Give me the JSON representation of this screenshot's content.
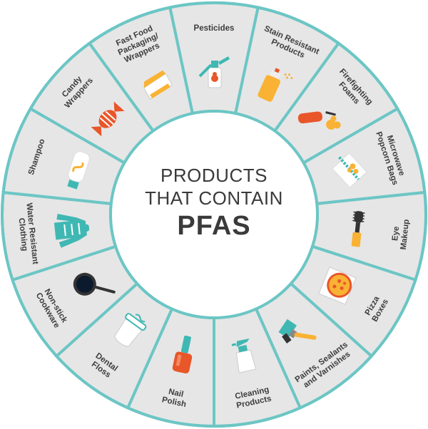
{
  "center": {
    "line1": "PRODUCTS",
    "line2": "THAT CONTAIN",
    "line3": "PFAS"
  },
  "colors": {
    "ring_border": "#6cc6c5",
    "segment_fill": "#e6e6e6",
    "center_fill": "#ffffff",
    "orange": "#e8562a",
    "yellow": "#f9b233",
    "teal": "#3fb8b3",
    "dark": "#333333"
  },
  "segments": [
    {
      "id": "pesticides",
      "lines": [
        "Pesticides"
      ],
      "icon": "pesticide-spray-icon"
    },
    {
      "id": "stain-resistant-products",
      "lines": [
        "Stain Resistant",
        "Products"
      ],
      "icon": "spray-can-icon"
    },
    {
      "id": "firefighting-foams",
      "lines": [
        "Firefighting",
        "Foams"
      ],
      "icon": "fire-extinguisher-icon"
    },
    {
      "id": "microwave-popcorn-bags",
      "lines": [
        "Microwave",
        "Popcorn Bags"
      ],
      "icon": "popcorn-bag-icon"
    },
    {
      "id": "eye-makeup",
      "lines": [
        "Eye",
        "Makeup"
      ],
      "icon": "mascara-icon"
    },
    {
      "id": "pizza-boxes",
      "lines": [
        "Pizza",
        "Boxes"
      ],
      "icon": "pizza-box-icon"
    },
    {
      "id": "paints-sealants-varnishes",
      "lines": [
        "Paints, Sealants",
        "and Varnishes"
      ],
      "icon": "paint-brush-icon"
    },
    {
      "id": "cleaning-products",
      "lines": [
        "Cleaning",
        "Products"
      ],
      "icon": "cleaning-spray-bottle-icon"
    },
    {
      "id": "nail-polish",
      "lines": [
        "Nail",
        "Polish"
      ],
      "icon": "nail-polish-icon"
    },
    {
      "id": "dental-floss",
      "lines": [
        "Dental",
        "Floss"
      ],
      "icon": "dental-floss-icon"
    },
    {
      "id": "non-stick-cookware",
      "lines": [
        "Non-stick",
        "Cookware"
      ],
      "icon": "frying-pan-icon"
    },
    {
      "id": "water-resistant-clothing",
      "lines": [
        "Water Resistant",
        "Clothing"
      ],
      "icon": "rain-jacket-icon"
    },
    {
      "id": "shampoo",
      "lines": [
        "Shampoo"
      ],
      "icon": "shampoo-bottle-icon"
    },
    {
      "id": "candy-wrappers",
      "lines": [
        "Candy",
        "Wrappers"
      ],
      "icon": "candy-icon"
    },
    {
      "id": "fast-food-packaging-wrappers",
      "lines": [
        "Fast Food",
        "Packaging/",
        "Wrappers"
      ],
      "icon": "food-container-icon"
    }
  ]
}
